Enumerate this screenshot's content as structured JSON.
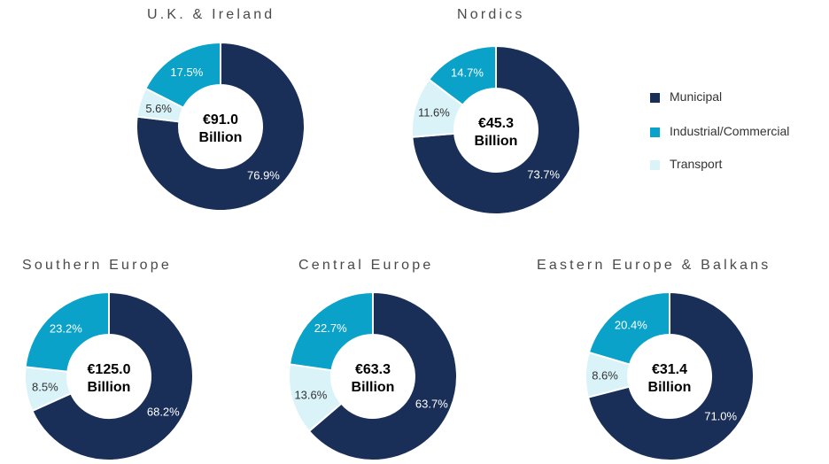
{
  "colors": {
    "Municipal": "#1a2f57",
    "Industrial/Commercial": "#0aa2c8",
    "Transport": "#d9f3f9"
  },
  "legend": [
    "Municipal",
    "Industrial/Commercial",
    "Transport"
  ],
  "chart_data": [
    {
      "type": "pie",
      "title": "U.K. & Ireland",
      "center_value": "€91.0",
      "center_unit": "Billion",
      "slices": [
        {
          "label": "Municipal",
          "value": 76.9,
          "text": "76.9%"
        },
        {
          "label": "Transport",
          "value": 5.6,
          "text": "5.6%"
        },
        {
          "label": "Industrial/Commercial",
          "value": 17.5,
          "text": "17.5%"
        }
      ]
    },
    {
      "type": "pie",
      "title": "Nordics",
      "center_value": "€45.3",
      "center_unit": "Billion",
      "slices": [
        {
          "label": "Municipal",
          "value": 73.7,
          "text": "73.7%"
        },
        {
          "label": "Transport",
          "value": 11.6,
          "text": "11.6%"
        },
        {
          "label": "Industrial/Commercial",
          "value": 14.7,
          "text": "14.7%"
        }
      ]
    },
    {
      "type": "pie",
      "title": "Southern Europe",
      "center_value": "€125.0",
      "center_unit": "Billion",
      "slices": [
        {
          "label": "Municipal",
          "value": 68.2,
          "text": "68.2%"
        },
        {
          "label": "Transport",
          "value": 8.5,
          "text": "8.5%"
        },
        {
          "label": "Industrial/Commercial",
          "value": 23.2,
          "text": "23.2%"
        }
      ]
    },
    {
      "type": "pie",
      "title": "Central Europe",
      "center_value": "€63.3",
      "center_unit": "Billion",
      "slices": [
        {
          "label": "Municipal",
          "value": 63.7,
          "text": "63.7%"
        },
        {
          "label": "Transport",
          "value": 13.6,
          "text": "13.6%"
        },
        {
          "label": "Industrial/Commercial",
          "value": 22.7,
          "text": "22.7%"
        }
      ]
    },
    {
      "type": "pie",
      "title": "Eastern Europe & Balkans",
      "center_value": "€31.4",
      "center_unit": "Billion",
      "slices": [
        {
          "label": "Municipal",
          "value": 71.0,
          "text": "71.0%"
        },
        {
          "label": "Transport",
          "value": 8.6,
          "text": "8.6%"
        },
        {
          "label": "Industrial/Commercial",
          "value": 20.4,
          "text": "20.4%"
        }
      ]
    }
  ]
}
